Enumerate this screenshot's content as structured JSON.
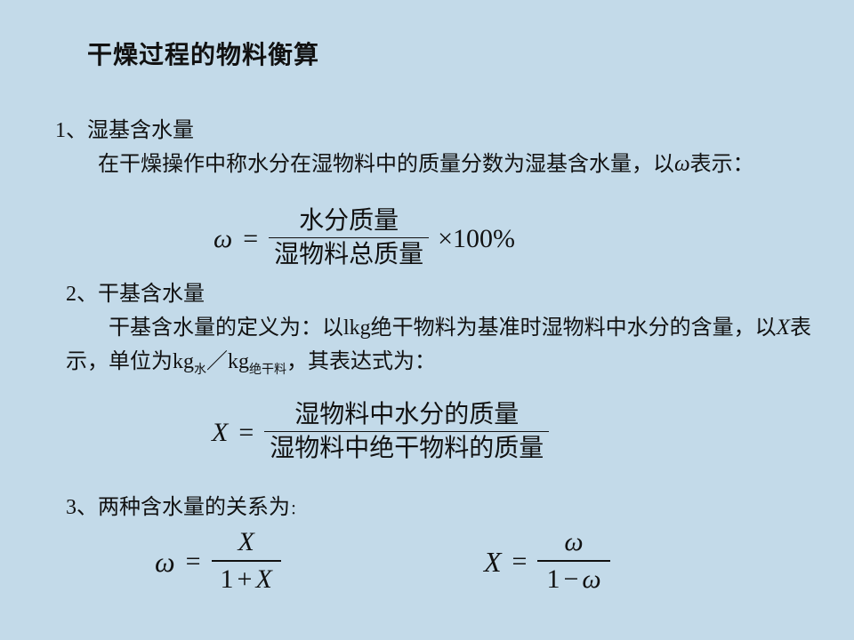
{
  "colors": {
    "background": "#c3dae9",
    "text": "#111111"
  },
  "typography": {
    "body_fontsize_pt": 18,
    "title_fontsize_pt": 21,
    "title_weight": "bold"
  },
  "title": "干燥过程的物料衡算",
  "section1": {
    "heading": "1、湿基含水量",
    "body_prefix": "在干燥操作中称水分在湿物料中的质量分数为湿基含水量，以",
    "symbol": "ω",
    "body_suffix": "表示：",
    "formula": {
      "lhs": "ω",
      "numerator": "水分质量",
      "denominator": "湿物料总质量",
      "tail": "×100%"
    }
  },
  "section2": {
    "heading": "2、干基含水量",
    "body_a": "干基含水量的定义为：以lkg绝干物料为基准时湿物料中水分的含量，以",
    "symbol": "X",
    "body_b": "表示，单位为kg",
    "sub1": "水",
    "slash": "／kg",
    "sub2": "绝干料",
    "body_c": "，其表达式为：",
    "formula": {
      "lhs": "X",
      "numerator": "湿物料中水分的质量",
      "denominator": "湿物料中绝干物料的质量"
    }
  },
  "section3": {
    "heading": "3、两种含水量的关系为",
    "f_left": {
      "lhs": "ω",
      "num": "X",
      "den_pre": "1",
      "den_op": "+",
      "den_post": "X"
    },
    "f_right": {
      "lhs": "X",
      "num": "ω",
      "den_pre": "1",
      "den_op": "−",
      "den_post": "ω"
    }
  }
}
